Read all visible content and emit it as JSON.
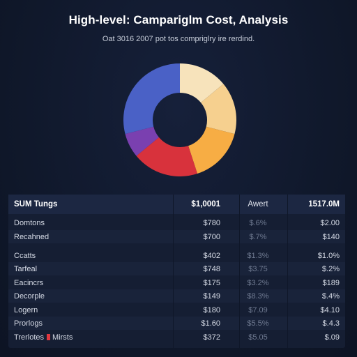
{
  "title": "High-level: Campariglm Cost, Analysis",
  "subtitle": "Oat 3016 2007 pot tos compriglry ire rerdind.",
  "colors": {
    "background": "#0f1729",
    "table_bg": "#151e33",
    "header_bg": "#1c2742",
    "accent_red": "#e0373f"
  },
  "chart_data": {
    "type": "pie",
    "donut": true,
    "title": "",
    "slices": [
      {
        "label": "",
        "value": 14,
        "color": "#f7e3bb"
      },
      {
        "label": "",
        "value": 15,
        "color": "#f6d08f"
      },
      {
        "label": "",
        "value": 16,
        "color": "#f7ad44"
      },
      {
        "label": "",
        "value": 19,
        "color": "#d8323c"
      },
      {
        "label": "",
        "value": 7,
        "color": "#7a40b0"
      },
      {
        "label": "",
        "value": 29,
        "color": "#4a61c6"
      }
    ]
  },
  "table": {
    "header": [
      "SUM Tungs",
      "$1,0001",
      "Awert",
      "1517.0M"
    ],
    "rows": [
      {
        "name": "Domtons",
        "c1": "$780",
        "c2": "$.6%",
        "c3": "$2.00"
      },
      {
        "name": "Recahned",
        "c1": "$700",
        "c2": "$.7%",
        "c3": "$140"
      },
      {
        "name": "Ccatts",
        "c1": "$402",
        "c2": "$1.3%",
        "c3": "$1.0%"
      },
      {
        "name": "Tarfeal",
        "c1": "$748",
        "c2": "$3.75",
        "c3": "$.2%"
      },
      {
        "name": "Eacincrs",
        "c1": "$175",
        "c2": "$3.2%",
        "c3": "$189"
      },
      {
        "name": "Decorple",
        "c1": "$149",
        "c2": "$8.3%",
        "c3": "$.4%"
      },
      {
        "name": "Logern",
        "c1": "$180",
        "c2": "$7.09",
        "c3": "$4.10"
      },
      {
        "name": "Prorlogs",
        "c1": "$1.60",
        "c2": "$5.5%",
        "c3": "$.4.3"
      },
      {
        "name": "Trerlotes",
        "name_extra": "Mirsts",
        "c1": "$372",
        "c2": "$5.05",
        "c3": "$.09"
      }
    ]
  }
}
